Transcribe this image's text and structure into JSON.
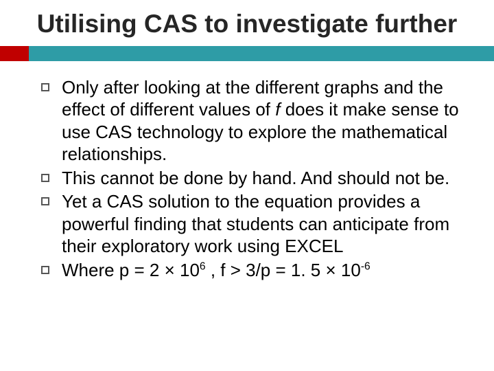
{
  "title": "Utilising CAS to investigate further",
  "accent": {
    "red": "#c00000",
    "teal": "#2e9ca6"
  },
  "typography": {
    "title_fontsize": 37,
    "body_fontsize": 26,
    "title_color": "#262626",
    "body_color": "#000000"
  },
  "bullets": [
    {
      "text_pre": "Only after looking at the different graphs and the effect of different values of ",
      "italic": "f",
      "text_post": " does it make sense to use CAS technology to explore the mathematical relationships."
    },
    {
      "text_pre": "This cannot be done by hand. And should not be.",
      "italic": "",
      "text_post": ""
    },
    {
      "text_pre": "Yet a CAS solution to the equation provides a powerful finding that students can anticipate from their exploratory work using EXCEL",
      "italic": "",
      "text_post": ""
    },
    {
      "text_pre": "Where p = 2 × 10",
      "sup1": "6",
      "mid": " , f > 3/p = 1. 5 × 10",
      "sup2": "-6",
      "text_post": ""
    }
  ]
}
